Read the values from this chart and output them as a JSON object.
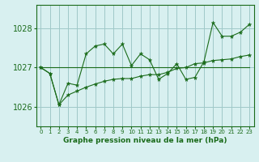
{
  "title": "Graphe pression niveau de la mer (hPa)",
  "background_color": "#d8f0f0",
  "grid_color": "#a0c8c8",
  "line_color": "#1a6b1a",
  "x_labels": [
    "0",
    "1",
    "2",
    "3",
    "4",
    "5",
    "6",
    "7",
    "8",
    "9",
    "10",
    "11",
    "12",
    "13",
    "14",
    "15",
    "16",
    "17",
    "18",
    "19",
    "20",
    "21",
    "22",
    "23"
  ],
  "ylim": [
    1025.5,
    1028.6
  ],
  "yticks": [
    1026,
    1027,
    1028
  ],
  "hours": [
    0,
    1,
    2,
    3,
    4,
    5,
    6,
    7,
    8,
    9,
    10,
    11,
    12,
    13,
    14,
    15,
    16,
    17,
    18,
    19,
    20,
    21,
    22,
    23
  ],
  "pressure_main": [
    1027.0,
    1026.85,
    1026.05,
    1026.6,
    1026.55,
    1027.35,
    1027.55,
    1027.6,
    1027.35,
    1027.6,
    1027.05,
    1027.35,
    1027.2,
    1026.7,
    1026.85,
    1027.1,
    1026.7,
    1026.75,
    1027.15,
    1028.15,
    1027.8,
    1027.8,
    1027.9,
    1028.1
  ],
  "pressure_trend": [
    1027.0,
    1026.85,
    1026.05,
    1026.3,
    1026.4,
    1026.5,
    1026.58,
    1026.65,
    1026.7,
    1026.72,
    1026.72,
    1026.78,
    1026.82,
    1026.82,
    1026.88,
    1026.98,
    1027.0,
    1027.1,
    1027.12,
    1027.18,
    1027.2,
    1027.22,
    1027.28,
    1027.32
  ],
  "pressure_flat": [
    1027.0,
    1027.0,
    1027.0,
    1027.0,
    1027.0,
    1027.0,
    1027.0,
    1027.0,
    1027.0,
    1027.0,
    1027.0,
    1027.0,
    1027.0,
    1027.0,
    1027.0,
    1027.0,
    1027.0,
    1027.0,
    1027.0,
    1027.0,
    1027.0,
    1027.0,
    1027.0,
    1027.0
  ],
  "figsize": [
    3.2,
    2.0
  ],
  "dpi": 100
}
